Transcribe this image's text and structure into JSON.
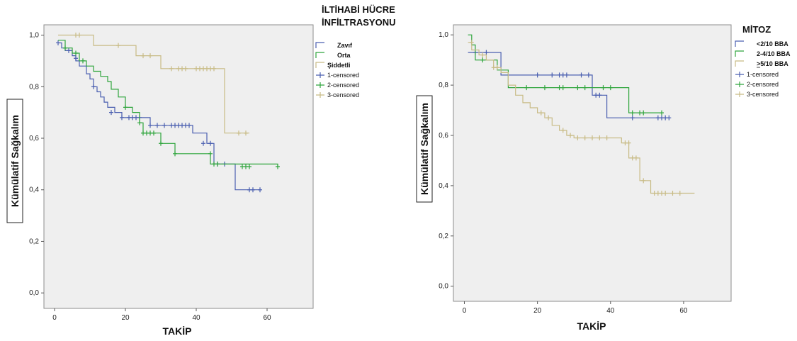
{
  "chart_data": [
    {
      "type": "line",
      "subtype": "kaplan-meier",
      "legend_title_lines": [
        "İLTİHABİ HÜCRE",
        "İNFİLTRASYONU"
      ],
      "xlabel": "TAKİP",
      "ylabel": "Kümülatif Sağkalım",
      "xlim": [
        -3,
        73
      ],
      "ylim": [
        -0.06,
        1.04
      ],
      "xticks": [
        0,
        20,
        40,
        60
      ],
      "xtick_labels": [
        "0",
        "20",
        "40",
        "60"
      ],
      "yticks": [
        0,
        0.2,
        0.4,
        0.6,
        0.8,
        1.0
      ],
      "ytick_labels": [
        "0,0",
        "0,2",
        "0,4",
        "0,6",
        "0,8",
        "1,0"
      ],
      "grid": false,
      "legend_position": "right",
      "series": [
        {
          "name": "Zayıf",
          "color": "#4a5fb0",
          "steps": [
            [
              1,
              0.97
            ],
            [
              2,
              0.95
            ],
            [
              3,
              0.94
            ],
            [
              5,
              0.92
            ],
            [
              6,
              0.9
            ],
            [
              7,
              0.88
            ],
            [
              9,
              0.85
            ],
            [
              10,
              0.83
            ],
            [
              11,
              0.8
            ],
            [
              12,
              0.78
            ],
            [
              13,
              0.76
            ],
            [
              14,
              0.74
            ],
            [
              15,
              0.72
            ],
            [
              17,
              0.7
            ],
            [
              19,
              0.68
            ],
            [
              27,
              0.65
            ],
            [
              39,
              0.62
            ],
            [
              43,
              0.58
            ],
            [
              45,
              0.5
            ],
            [
              51,
              0.4
            ],
            [
              58,
              0.4
            ]
          ],
          "censored": [
            [
              1,
              0.97
            ],
            [
              4,
              0.94
            ],
            [
              6,
              0.91
            ],
            [
              11,
              0.8
            ],
            [
              16,
              0.7
            ],
            [
              19,
              0.68
            ],
            [
              21,
              0.68
            ],
            [
              22,
              0.68
            ],
            [
              23,
              0.68
            ],
            [
              24,
              0.68
            ],
            [
              27,
              0.65
            ],
            [
              29,
              0.65
            ],
            [
              31,
              0.65
            ],
            [
              33,
              0.65
            ],
            [
              34,
              0.65
            ],
            [
              35,
              0.65
            ],
            [
              36,
              0.65
            ],
            [
              37,
              0.65
            ],
            [
              38,
              0.65
            ],
            [
              42,
              0.58
            ],
            [
              44,
              0.58
            ],
            [
              46,
              0.5
            ],
            [
              48,
              0.5
            ],
            [
              55,
              0.4
            ],
            [
              56,
              0.4
            ],
            [
              58,
              0.4
            ]
          ]
        },
        {
          "name": "Orta",
          "color": "#2fa53c",
          "steps": [
            [
              1,
              0.98
            ],
            [
              3,
              0.95
            ],
            [
              5,
              0.93
            ],
            [
              7,
              0.9
            ],
            [
              9,
              0.88
            ],
            [
              11,
              0.86
            ],
            [
              13,
              0.84
            ],
            [
              15,
              0.82
            ],
            [
              16,
              0.79
            ],
            [
              18,
              0.76
            ],
            [
              20,
              0.72
            ],
            [
              22,
              0.7
            ],
            [
              24,
              0.66
            ],
            [
              25,
              0.62
            ],
            [
              30,
              0.58
            ],
            [
              34,
              0.54
            ],
            [
              44,
              0.5
            ],
            [
              63,
              0.49
            ]
          ],
          "censored": [
            [
              3,
              0.95
            ],
            [
              6,
              0.93
            ],
            [
              8,
              0.9
            ],
            [
              20,
              0.72
            ],
            [
              24,
              0.66
            ],
            [
              25,
              0.62
            ],
            [
              26,
              0.62
            ],
            [
              27,
              0.62
            ],
            [
              28,
              0.62
            ],
            [
              30,
              0.58
            ],
            [
              34,
              0.54
            ],
            [
              44,
              0.54
            ],
            [
              45,
              0.5
            ],
            [
              46,
              0.5
            ],
            [
              53,
              0.49
            ],
            [
              54,
              0.49
            ],
            [
              55,
              0.49
            ],
            [
              63,
              0.49
            ]
          ]
        },
        {
          "name": "Şiddetli",
          "color": "#c8bb85",
          "steps": [
            [
              1,
              1.0
            ],
            [
              11,
              0.96
            ],
            [
              23,
              0.92
            ],
            [
              30,
              0.87
            ],
            [
              48,
              0.62
            ],
            [
              55,
              0.62
            ]
          ],
          "censored": [
            [
              6,
              1.0
            ],
            [
              7,
              1.0
            ],
            [
              18,
              0.96
            ],
            [
              25,
              0.92
            ],
            [
              27,
              0.92
            ],
            [
              33,
              0.87
            ],
            [
              35,
              0.87
            ],
            [
              36,
              0.87
            ],
            [
              37,
              0.87
            ],
            [
              40,
              0.87
            ],
            [
              41,
              0.87
            ],
            [
              42,
              0.87
            ],
            [
              43,
              0.87
            ],
            [
              44,
              0.87
            ],
            [
              45,
              0.87
            ],
            [
              52,
              0.62
            ],
            [
              54,
              0.62
            ]
          ]
        }
      ],
      "legend": [
        {
          "label": "Zavıf",
          "kind": "step",
          "color": "#4a5fb0"
        },
        {
          "label": "Orta",
          "kind": "step",
          "color": "#2fa53c"
        },
        {
          "label": "Şiddetli",
          "kind": "step",
          "color": "#c8bb85"
        },
        {
          "label": "1-censored",
          "kind": "plus",
          "color": "#4a5fb0"
        },
        {
          "label": "2-censored",
          "kind": "plus",
          "color": "#2fa53c"
        },
        {
          "label": "3-censored",
          "kind": "plus",
          "color": "#c8bb85"
        }
      ]
    },
    {
      "type": "line",
      "subtype": "kaplan-meier",
      "legend_title_lines": [
        "MİTOZ"
      ],
      "xlabel": "TAKİP",
      "ylabel": "Kümülatif Sağkalım",
      "xlim": [
        -3,
        73
      ],
      "ylim": [
        -0.06,
        1.04
      ],
      "xticks": [
        0,
        20,
        40,
        60
      ],
      "xtick_labels": [
        "0",
        "20",
        "40",
        "60"
      ],
      "yticks": [
        0,
        0.2,
        0.4,
        0.6,
        0.8,
        1.0
      ],
      "ytick_labels": [
        "0,0",
        "0,2",
        "0,4",
        "0,6",
        "0,8",
        "1,0"
      ],
      "grid": false,
      "legend_position": "right",
      "series": [
        {
          "name": "<2/10 BBA",
          "color": "#4a5fb0",
          "steps": [
            [
              1,
              0.93
            ],
            [
              10,
              0.84
            ],
            [
              35,
              0.76
            ],
            [
              39,
              0.67
            ],
            [
              56,
              0.67
            ]
          ],
          "censored": [
            [
              3,
              0.93
            ],
            [
              6,
              0.93
            ],
            [
              20,
              0.84
            ],
            [
              24,
              0.84
            ],
            [
              26,
              0.84
            ],
            [
              27,
              0.84
            ],
            [
              28,
              0.84
            ],
            [
              32,
              0.84
            ],
            [
              34,
              0.84
            ],
            [
              36,
              0.76
            ],
            [
              37,
              0.76
            ],
            [
              46,
              0.67
            ],
            [
              53,
              0.67
            ],
            [
              54,
              0.67
            ],
            [
              55,
              0.67
            ],
            [
              56,
              0.67
            ]
          ]
        },
        {
          "name": "2-4/10 BBA",
          "color": "#2fa53c",
          "steps": [
            [
              1,
              1.0
            ],
            [
              2,
              0.96
            ],
            [
              3,
              0.9
            ],
            [
              8,
              0.9
            ],
            [
              9,
              0.86
            ],
            [
              12,
              0.79
            ],
            [
              45,
              0.69
            ],
            [
              54,
              0.69
            ]
          ],
          "censored": [
            [
              5,
              0.9
            ],
            [
              17,
              0.79
            ],
            [
              22,
              0.79
            ],
            [
              26,
              0.79
            ],
            [
              27,
              0.79
            ],
            [
              31,
              0.79
            ],
            [
              33,
              0.79
            ],
            [
              38,
              0.79
            ],
            [
              40,
              0.79
            ],
            [
              46,
              0.69
            ],
            [
              48,
              0.69
            ],
            [
              49,
              0.69
            ],
            [
              54,
              0.69
            ]
          ]
        },
        {
          "name": "≥5/10 BBA",
          "color": "#c8bb85",
          "steps": [
            [
              1,
              0.97
            ],
            [
              2,
              0.94
            ],
            [
              4,
              0.92
            ],
            [
              6,
              0.9
            ],
            [
              8,
              0.87
            ],
            [
              10,
              0.85
            ],
            [
              12,
              0.8
            ],
            [
              14,
              0.76
            ],
            [
              16,
              0.73
            ],
            [
              18,
              0.71
            ],
            [
              20,
              0.69
            ],
            [
              22,
              0.67
            ],
            [
              24,
              0.64
            ],
            [
              26,
              0.62
            ],
            [
              28,
              0.6
            ],
            [
              30,
              0.59
            ],
            [
              43,
              0.57
            ],
            [
              45,
              0.51
            ],
            [
              48,
              0.42
            ],
            [
              51,
              0.37
            ],
            [
              63,
              0.37
            ]
          ],
          "censored": [
            [
              2,
              0.97
            ],
            [
              5,
              0.92
            ],
            [
              8,
              0.87
            ],
            [
              9,
              0.87
            ],
            [
              21,
              0.69
            ],
            [
              23,
              0.67
            ],
            [
              27,
              0.62
            ],
            [
              29,
              0.6
            ],
            [
              31,
              0.59
            ],
            [
              33,
              0.59
            ],
            [
              35,
              0.59
            ],
            [
              37,
              0.59
            ],
            [
              39,
              0.59
            ],
            [
              44,
              0.57
            ],
            [
              45,
              0.57
            ],
            [
              46,
              0.51
            ],
            [
              47,
              0.51
            ],
            [
              49,
              0.42
            ],
            [
              52,
              0.37
            ],
            [
              53,
              0.37
            ],
            [
              54,
              0.37
            ],
            [
              55,
              0.37
            ],
            [
              57,
              0.37
            ],
            [
              59,
              0.37
            ]
          ]
        }
      ],
      "legend": [
        {
          "label": "<2/10 BBA",
          "kind": "step",
          "color": "#4a5fb0"
        },
        {
          "label": "2-4/10 BBA",
          "kind": "step",
          "color": "#2fa53c"
        },
        {
          "label": ">5/10 BBA",
          "kind": "step",
          "color": "#c8bb85",
          "underline_gt": true
        },
        {
          "label": "1-censored",
          "kind": "plus",
          "color": "#4a5fb0"
        },
        {
          "label": "2-censored",
          "kind": "plus",
          "color": "#2fa53c"
        },
        {
          "label": "3-censored",
          "kind": "plus",
          "color": "#c8bb85"
        }
      ]
    }
  ]
}
